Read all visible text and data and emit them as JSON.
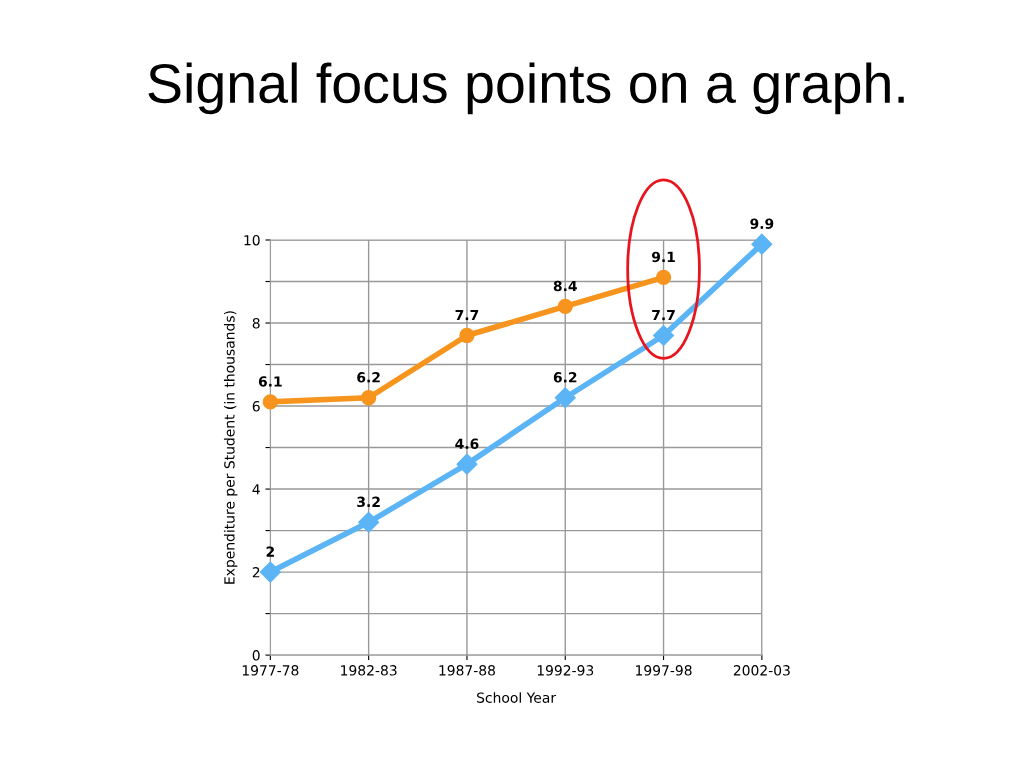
{
  "chart_data": {
    "type": "line",
    "title": "Signal focus points on a graph.",
    "xlabel": "School Year",
    "ylabel": "Expenditure per Student (in thousands)",
    "categories": [
      "1977-78",
      "1982-83",
      "1987-88",
      "1992-93",
      "1997-98",
      "2002-03"
    ],
    "series": [
      {
        "color": "#f7941d",
        "marker": "circle",
        "values": [
          6.1,
          6.2,
          7.7,
          8.4,
          9.1,
          null
        ]
      },
      {
        "color": "#5bb4f5",
        "marker": "diamond",
        "values": [
          2,
          3.2,
          4.6,
          6.2,
          7.7,
          9.9
        ]
      }
    ],
    "ylim": [
      0,
      10
    ],
    "yticks": [
      0,
      {
        "value": 1,
        "label": null
      },
      2,
      {
        "value": 3,
        "label": null
      },
      4,
      {
        "value": 5,
        "label": null
      },
      6,
      {
        "value": 7,
        "label": null
      },
      8,
      {
        "value": 9,
        "label": null
      },
      10
    ],
    "grid": true,
    "data_labels": true,
    "line_style": "solid"
  }
}
